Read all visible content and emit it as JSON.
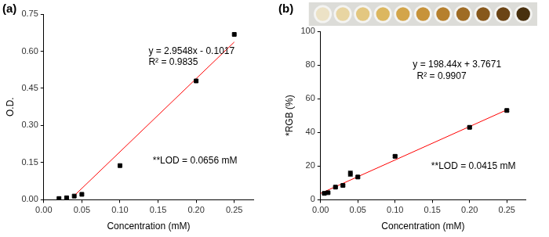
{
  "chart_data": [
    {
      "type": "scatter",
      "panel_label": "(a)",
      "x_label": "Concentration (mM)",
      "y_label": "O.D.",
      "xlim": [
        0,
        0.275
      ],
      "xticks": [
        {
          "value": 0,
          "label": "0.00"
        },
        {
          "value": 0.05,
          "label": "0.05"
        },
        {
          "value": 0.1,
          "label": "0.10"
        },
        {
          "value": 0.15,
          "label": "0.15"
        },
        {
          "value": 0.2,
          "label": "0.20"
        },
        {
          "value": 0.25,
          "label": "0.25"
        }
      ],
      "ylim": [
        0,
        0.75
      ],
      "yticks": [
        {
          "value": 0,
          "label": "0.00"
        },
        {
          "value": 0.15,
          "label": "0.15"
        },
        {
          "value": 0.3,
          "label": "0.30"
        },
        {
          "value": 0.45,
          "label": "0.45"
        },
        {
          "value": 0.6,
          "label": "0.60"
        },
        {
          "value": 0.75,
          "label": "0.75"
        }
      ],
      "grid": false,
      "annotations": [
        "y = 2.9548x - 0.1017",
        "R² = 0.9835",
        "**LOD = 0.0656 mM"
      ],
      "series": [
        {
          "type": "scatter",
          "marker": "square",
          "color": "#000000",
          "x": [
            0.02,
            0.03,
            0.04,
            0.05,
            0.1,
            0.2,
            0.25
          ],
          "values": [
            0.005,
            0.008,
            0.015,
            0.022,
            0.138,
            0.48,
            0.668
          ]
        },
        {
          "type": "line",
          "line_style": "solid",
          "color": "#ff0000",
          "x": [
            0.038,
            0.25
          ],
          "values": [
            0.0106,
            0.637
          ]
        }
      ]
    },
    {
      "type": "scatter",
      "panel_label": "(b)",
      "x_label": "Concentration (mM)",
      "y_label": "*RGB (%)",
      "xlim": [
        0,
        0.275
      ],
      "xticks": [
        {
          "value": 0,
          "label": "0.00"
        },
        {
          "value": 0.05,
          "label": "0.05"
        },
        {
          "value": 0.1,
          "label": "0.10"
        },
        {
          "value": 0.15,
          "label": "0.15"
        },
        {
          "value": 0.2,
          "label": "0.20"
        },
        {
          "value": 0.25,
          "label": "0.25"
        }
      ],
      "ylim": [
        0,
        100
      ],
      "yticks": [
        0,
        20,
        40,
        60,
        80,
        100
      ],
      "grid": false,
      "annotations": [
        "y = 198.44x + 3.7671",
        "R² = 0.9907",
        "**LOD = 0.0415 mM"
      ],
      "series": [
        {
          "type": "scatter",
          "marker": "square",
          "color": "#000000",
          "x": [
            0.005,
            0.01,
            0.02,
            0.03,
            0.04,
            0.05,
            0.1,
            0.2,
            0.25
          ],
          "values": [
            3.8,
            4.2,
            7.5,
            8.5,
            15.5,
            13.5,
            25.8,
            43,
            53
          ],
          "errors": [
            0.4,
            0.4,
            0.5,
            0.5,
            1.5,
            0.6,
            0.6,
            0.6,
            0.6
          ]
        },
        {
          "type": "line",
          "line_style": "solid",
          "color": "#ff0000",
          "x": [
            0,
            0.25
          ],
          "values": [
            3.77,
            53.38
          ]
        }
      ]
    }
  ]
}
